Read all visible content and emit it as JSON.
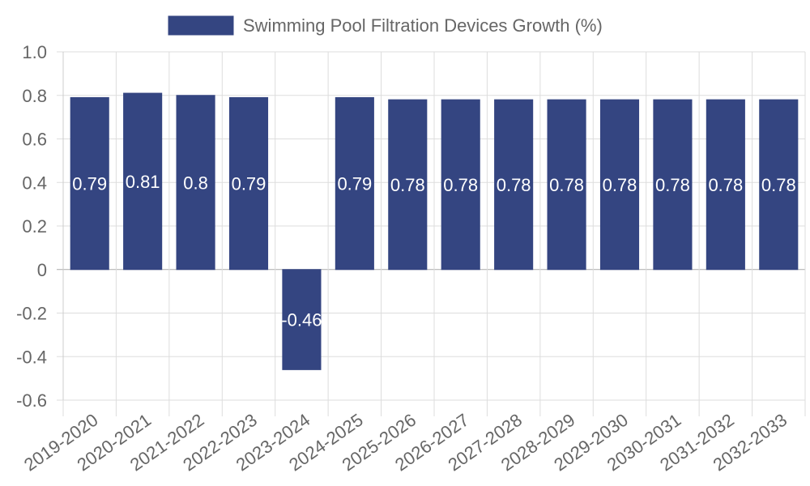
{
  "chart_data": {
    "type": "bar",
    "title": "",
    "xlabel": "",
    "ylabel": "",
    "categories": [
      "2019-2020",
      "2020-2021",
      "2021-2022",
      "2022-2023",
      "2023-2024",
      "2024-2025",
      "2025-2026",
      "2026-2027",
      "2027-2028",
      "2028-2029",
      "2029-2030",
      "2030-2031",
      "2031-2032",
      "2032-2033"
    ],
    "series": [
      {
        "name": "Swimming Pool Filtration Devices Growth (%)",
        "values": [
          0.79,
          0.81,
          0.8,
          0.79,
          -0.46,
          0.79,
          0.78,
          0.78,
          0.78,
          0.78,
          0.78,
          0.78,
          0.78,
          0.78
        ],
        "labels": [
          "0.79",
          "0.81",
          "0.8",
          "0.79",
          "-0.46",
          "0.79",
          "0.78",
          "0.78",
          "0.78",
          "0.78",
          "0.78",
          "0.78",
          "0.78",
          "0.78"
        ]
      }
    ],
    "ylim": [
      -0.6,
      1.0
    ],
    "yticks": [
      "1.0",
      "0.8",
      "0.6",
      "0.4",
      "0.2",
      "0",
      "-0.2",
      "-0.4",
      "-0.6"
    ],
    "ytick_values": [
      1.0,
      0.8,
      0.6,
      0.4,
      0.2,
      0,
      -0.2,
      -0.4,
      -0.6
    ],
    "grid": true,
    "legend_position": "top-center",
    "colors": {
      "bar": "#344581",
      "grid": "#dddddd",
      "axis": "#cccccc",
      "text": "#666666",
      "label": "#ffffff"
    }
  }
}
